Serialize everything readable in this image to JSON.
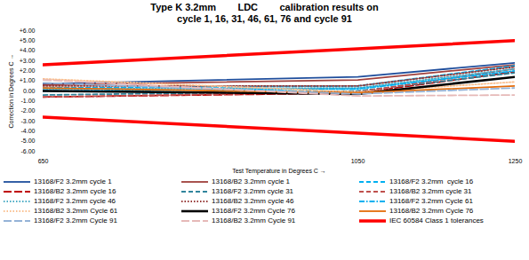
{
  "chart_data": {
    "type": "line",
    "title": "Type K 3.2mm        LDC        calibration results on\ncycle 1, 16, 31, 46, 61, 76 and cycle 91",
    "x_label": "Test Temperature in Degrees C",
    "y_label": "Correction in Degrees C",
    "x": [
      650,
      1050,
      1250
    ],
    "xlim": [
      650,
      1250
    ],
    "xticks": [
      650,
      1050,
      1250
    ],
    "ylim": [
      -6,
      6
    ],
    "yticks": [
      {
        "value": 6,
        "label": "+6.00"
      },
      {
        "value": 5,
        "label": "+5.00"
      },
      {
        "value": 4,
        "label": "+4.00"
      },
      {
        "value": 3,
        "label": "+3.00"
      },
      {
        "value": 2,
        "label": "+2.00"
      },
      {
        "value": 1,
        "label": "+1.00"
      },
      {
        "value": 0,
        "label": "0.00"
      },
      {
        "value": -1,
        "label": "-1.00"
      },
      {
        "value": -2,
        "label": "-2.00"
      },
      {
        "value": -3,
        "label": "-3.00"
      },
      {
        "value": -4,
        "label": "-4.00"
      },
      {
        "value": -5,
        "label": "-5.00"
      },
      {
        "value": -6,
        "label": "-6.00"
      }
    ],
    "grid": false,
    "legend": "bottom",
    "series": [
      {
        "name": "13168/F2 3.2mm cycle 1",
        "color": "#1f4e9c",
        "line_style": "solid",
        "values": [
          0.7,
          1.4,
          2.8
        ]
      },
      {
        "name": "13168/B2 3.2mm cycle 1",
        "color": "#a0403c",
        "line_style": "solid",
        "values": [
          0.6,
          1.1,
          2.6
        ]
      },
      {
        "name": "13168/F2 3.2mm  cycle 16",
        "color": "#00b0f0",
        "line_style": "dashed",
        "values": [
          0.3,
          0.5,
          2.5
        ]
      },
      {
        "name": "13168/B2 3.2mm cycle 16",
        "color": "#c00000",
        "line_style": "longdash",
        "values": [
          -0.6,
          -0.2,
          1.9
        ]
      },
      {
        "name": "13168/F2 3.2mm cycle 31",
        "color": "#31859c",
        "line_style": "dashed",
        "values": [
          -0.4,
          0.0,
          1.8
        ]
      },
      {
        "name": "13168/B2 3.2mm cycle 31",
        "color": "#c0504d",
        "line_style": "dashed",
        "values": [
          -0.6,
          -0.1,
          2.2
        ]
      },
      {
        "name": "13168/F2 3.2mm cycle 46",
        "color": "#4bacc6",
        "line_style": "dotted",
        "values": [
          0.2,
          0.3,
          2.2
        ]
      },
      {
        "name": "13168/B2 3.2mm cycle 46",
        "color": "#953735",
        "line_style": "dotted",
        "values": [
          0.5,
          0.5,
          2.4
        ]
      },
      {
        "name": "13168/F2 3.2mm Cycle 61",
        "color": "#00b0f0",
        "line_style": "dashdot",
        "values": [
          0.0,
          0.2,
          2.0
        ]
      },
      {
        "name": "13168/B2 3.2mm Cycle 61",
        "color": "#fac090",
        "line_style": "dotted",
        "values": [
          1.2,
          -0.1,
          0.9
        ]
      },
      {
        "name": "13168/F2 3.2mm Cycle 76",
        "color": "#000000",
        "line_style": "solid",
        "values": [
          0.0,
          -0.3,
          1.4
        ]
      },
      {
        "name": "13168/B2 3.2mm Cycle 76",
        "color": "#e46c0a",
        "line_style": "solid",
        "values": [
          0.3,
          -0.2,
          0.5
        ]
      },
      {
        "name": "13168/F2 3.2mm Cycle 91",
        "color": "#95b3d7",
        "line_style": "longdash",
        "values": [
          0.8,
          -0.3,
          0.3
        ]
      },
      {
        "name": "13168/B2 3.2mm Cycle 91",
        "color": "#e6b9b8",
        "line_style": "longdash",
        "values": [
          1.1,
          -0.5,
          -0.4
        ]
      },
      {
        "name": "IEC 60584 Class 1 tolerances",
        "color": "#ff0000",
        "line_style": "solid",
        "values": [
          2.6,
          4.2,
          5.0
        ],
        "lower": [
          -2.6,
          -4.2,
          -5.0
        ]
      }
    ]
  }
}
